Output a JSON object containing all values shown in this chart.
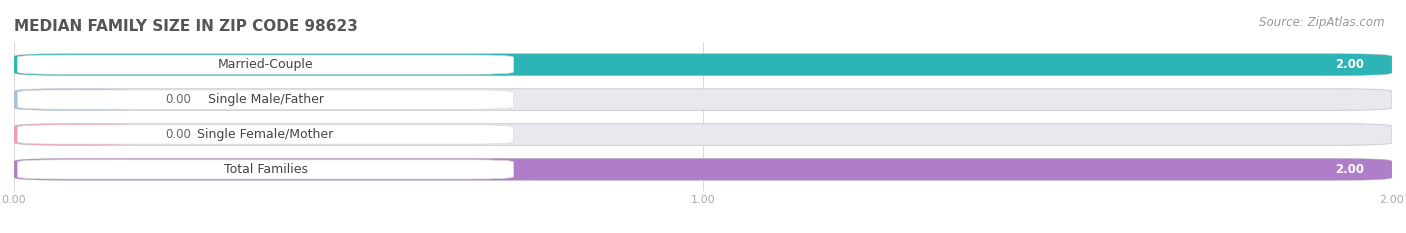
{
  "title": "MEDIAN FAMILY SIZE IN ZIP CODE 98623",
  "source": "Source: ZipAtlas.com",
  "categories": [
    "Married-Couple",
    "Single Male/Father",
    "Single Female/Mother",
    "Total Families"
  ],
  "values": [
    2.0,
    0.0,
    0.0,
    2.0
  ],
  "bar_colors": [
    "#2db5b5",
    "#a8bede",
    "#f09cb0",
    "#b07ec8"
  ],
  "background_color": "#ffffff",
  "bar_bg_color": "#e8e8ee",
  "bar_border_color": "#d0d0d8",
  "xlim": [
    0,
    2.0
  ],
  "xticks": [
    0.0,
    1.0,
    2.0
  ],
  "title_fontsize": 11,
  "label_fontsize": 9,
  "value_fontsize": 8.5,
  "source_fontsize": 8.5
}
